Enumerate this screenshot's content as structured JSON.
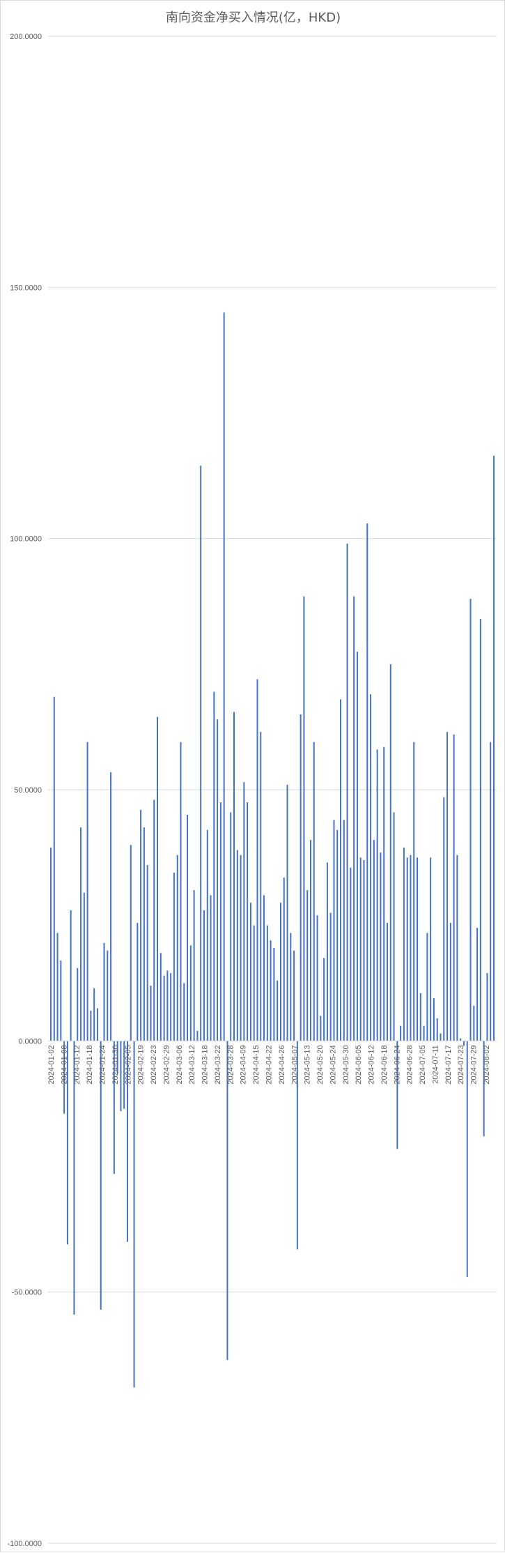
{
  "chart_data": {
    "type": "bar",
    "title": "南向资金净买入情况(亿，HKD)",
    "xlabel": "",
    "ylabel": "",
    "ylim": [
      -100,
      200
    ],
    "yticks": [
      -100,
      -50,
      0,
      50,
      100,
      150,
      200
    ],
    "ytick_labels": [
      "-100.0000",
      "-50.0000",
      "0.0000",
      "50.0000",
      "100.0000",
      "150.0000",
      "200.0000"
    ],
    "xtick_labels": [
      "2024-01-02",
      "2024-01-08",
      "2024-01-12",
      "2024-01-18",
      "2024-01-24",
      "2024-01-30",
      "2024-02-05",
      "2024-02-19",
      "2024-02-23",
      "2024-02-29",
      "2024-03-06",
      "2024-03-12",
      "2024-03-18",
      "2024-03-22",
      "2024-03-28",
      "2024-04-09",
      "2024-04-15",
      "2024-04-22",
      "2024-04-26",
      "2024-05-07",
      "2024-05-13",
      "2024-05-20",
      "2024-05-24",
      "2024-05-30",
      "2024-06-05",
      "2024-06-12",
      "2024-06-18",
      "2024-06-24",
      "2024-06-28",
      "2024-07-05",
      "2024-07-11",
      "2024-07-17",
      "2024-07-23",
      "2024-07-29",
      "2024-08-02"
    ],
    "grid": true,
    "bar_color": "#4472c4",
    "values": [
      38.5,
      68.5,
      21.5,
      16,
      -14.5,
      -40.5,
      26,
      -54.5,
      14.5,
      42.5,
      29.5,
      59.5,
      6,
      10.5,
      6.5,
      -53.5,
      19.5,
      18,
      53.5,
      -26.5,
      -6.5,
      -14,
      -13.5,
      -40,
      39,
      -69,
      23.5,
      46,
      42.5,
      35,
      11,
      48,
      64.5,
      17.5,
      13,
      14,
      13.5,
      33.5,
      37,
      59.5,
      11.5,
      45,
      19,
      30,
      2,
      114.5,
      26,
      42,
      29,
      69.5,
      64,
      47.5,
      145,
      -63.5,
      45.5,
      65.5,
      38,
      37,
      51.5,
      47.5,
      27.5,
      23,
      72,
      61.5,
      29,
      23,
      20,
      18.5,
      12,
      27.5,
      32.5,
      51,
      21.5,
      18,
      -41.5,
      65,
      88.5,
      30,
      40,
      59.5,
      25,
      5,
      16.5,
      35.5,
      25.5,
      44,
      42,
      68,
      44,
      99,
      34.5,
      88.5,
      77.5,
      36.5,
      36,
      103,
      69,
      40,
      58,
      37.5,
      58.5,
      23.5,
      75,
      45.5,
      -21.5,
      3,
      38.5,
      36.5,
      37,
      59.5,
      36.5,
      9.5,
      3,
      21.5,
      36.5,
      8.5,
      4.5,
      1.5,
      48.5,
      61.5,
      23.5,
      61,
      37,
      0.5,
      -1,
      -47,
      88,
      7,
      22.5,
      84,
      -19,
      13.5,
      59.5,
      116.5
    ]
  }
}
